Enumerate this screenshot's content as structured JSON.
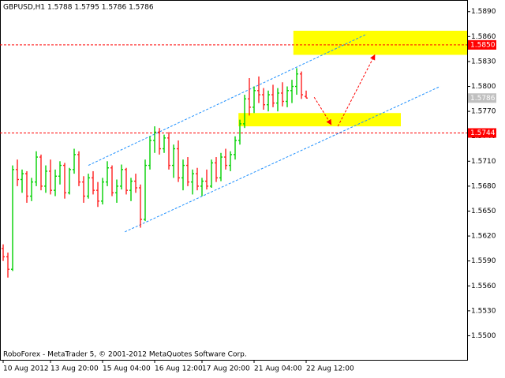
{
  "chart_data": {
    "type": "ohlc",
    "title": "GBPUSD,H1  1.5788 1.5795 1.5786 1.5786",
    "footer": "RoboForex - MetaTrader 5, © 2001-2012 MetaQuotes Software Corp.",
    "up_color": "#00d000",
    "down_color": "#ff2020",
    "open": [
      1.5605,
      1.5595,
      1.558,
      1.57,
      1.5688,
      1.5695,
      1.5668,
      1.5685,
      1.5715,
      1.568,
      1.5698,
      1.5675,
      1.5692,
      1.5705,
      1.5672,
      1.57,
      1.5718,
      1.5685,
      1.5668,
      1.569,
      1.5675,
      1.5662,
      1.5685,
      1.5702,
      1.5672,
      1.568,
      1.57,
      1.5675,
      1.5686,
      1.5678,
      1.564,
      1.5705,
      1.5735,
      1.5745,
      1.5725,
      1.5738,
      1.5705,
      1.5725,
      1.569,
      1.5705,
      1.5685,
      1.5695,
      1.568,
      1.5686,
      1.568,
      1.5708,
      1.569,
      1.5715,
      1.5705,
      1.5718,
      1.5735,
      1.5755,
      1.5785,
      1.5775,
      1.5795,
      1.579,
      1.5778,
      1.579,
      1.578,
      1.5792,
      1.5782,
      1.5795,
      1.58,
      1.5815,
      1.5788
    ],
    "high": [
      1.561,
      1.56,
      1.5705,
      1.5712,
      1.57,
      1.5698,
      1.569,
      1.5722,
      1.5718,
      1.5705,
      1.5712,
      1.57,
      1.571,
      1.5708,
      1.5702,
      1.5725,
      1.5722,
      1.5692,
      1.5695,
      1.5698,
      1.5685,
      1.569,
      1.571,
      1.5705,
      1.5688,
      1.5706,
      1.5702,
      1.569,
      1.5695,
      1.5682,
      1.5712,
      1.574,
      1.5752,
      1.575,
      1.5742,
      1.5745,
      1.573,
      1.5735,
      1.5712,
      1.5715,
      1.57,
      1.5702,
      1.569,
      1.57,
      1.5712,
      1.5715,
      1.572,
      1.5725,
      1.5722,
      1.574,
      1.576,
      1.579,
      1.581,
      1.58,
      1.5812,
      1.5798,
      1.5795,
      1.5802,
      1.5798,
      1.5805,
      1.58,
      1.5808,
      1.5822,
      1.5818,
      1.5795
    ],
    "low": [
      1.559,
      1.557,
      1.5578,
      1.568,
      1.5672,
      1.566,
      1.5662,
      1.568,
      1.5675,
      1.5672,
      1.567,
      1.5668,
      1.5682,
      1.5665,
      1.567,
      1.5695,
      1.568,
      1.566,
      1.5665,
      1.567,
      1.5655,
      1.5658,
      1.568,
      1.5668,
      1.566,
      1.5676,
      1.567,
      1.5662,
      1.5672,
      1.563,
      1.5638,
      1.57,
      1.572,
      1.5718,
      1.572,
      1.57,
      1.569,
      1.5685,
      1.5675,
      1.568,
      1.567,
      1.5675,
      1.5668,
      1.5676,
      1.5678,
      1.5685,
      1.5686,
      1.57,
      1.5698,
      1.5712,
      1.573,
      1.575,
      1.5765,
      1.5768,
      1.578,
      1.5772,
      1.577,
      1.5775,
      1.577,
      1.5776,
      1.5775,
      1.578,
      1.579,
      1.5785,
      1.5786
    ],
    "close": [
      1.5595,
      1.558,
      1.57,
      1.5688,
      1.5695,
      1.5668,
      1.5685,
      1.5715,
      1.568,
      1.5698,
      1.5675,
      1.5692,
      1.5705,
      1.5672,
      1.57,
      1.5718,
      1.5685,
      1.5668,
      1.569,
      1.5675,
      1.5662,
      1.5685,
      1.5702,
      1.5672,
      1.568,
      1.57,
      1.5675,
      1.5686,
      1.5678,
      1.564,
      1.5705,
      1.5735,
      1.5745,
      1.5725,
      1.5738,
      1.5705,
      1.5725,
      1.569,
      1.5705,
      1.5685,
      1.5695,
      1.568,
      1.5686,
      1.568,
      1.5708,
      1.569,
      1.5715,
      1.5705,
      1.5718,
      1.5735,
      1.5755,
      1.5785,
      1.5775,
      1.5795,
      1.579,
      1.5778,
      1.579,
      1.578,
      1.5792,
      1.5782,
      1.5795,
      1.58,
      1.5815,
      1.579,
      1.5786
    ],
    "xlim": [
      -0.667,
      98
    ],
    "xticks": [
      {
        "value": 0,
        "label": "10 Aug 2012"
      },
      {
        "value": 10,
        "label": "13 Aug 20:00"
      },
      {
        "value": 21,
        "label": "15 Aug 04:00"
      },
      {
        "value": 32,
        "label": "16 Aug 12:00"
      },
      {
        "value": 42,
        "label": "17 Aug 20:00"
      },
      {
        "value": 53,
        "label": "21 Aug 04:00"
      },
      {
        "value": 64,
        "label": "22 Aug 12:00"
      }
    ],
    "ylim": [
      1.5471,
      1.5904
    ],
    "yticks": [
      {
        "value": 1.589,
        "label": "1.5890"
      },
      {
        "value": 1.586,
        "label": "1.5860"
      },
      {
        "value": 1.583,
        "label": "1.5830"
      },
      {
        "value": 1.58,
        "label": "1.5800"
      },
      {
        "value": 1.577,
        "label": "1.5770"
      },
      {
        "value": 1.574,
        "label": "1.5740"
      },
      {
        "value": 1.571,
        "label": "1.5710"
      },
      {
        "value": 1.568,
        "label": "1.5680"
      },
      {
        "value": 1.565,
        "label": "1.5650"
      },
      {
        "value": 1.562,
        "label": "1.5620"
      },
      {
        "value": 1.559,
        "label": "1.5590"
      },
      {
        "value": 1.556,
        "label": "1.5560"
      },
      {
        "value": 1.553,
        "label": "1.5530"
      },
      {
        "value": 1.55,
        "label": "1.5500"
      }
    ],
    "levels": [
      {
        "value": 1.585,
        "label": "1.5850",
        "color": "#ff0000"
      },
      {
        "value": 1.5744,
        "label": "1.5744",
        "color": "#ff0000"
      }
    ],
    "last_price": {
      "value": 1.5786,
      "label": "1.5786",
      "color": "#c0c0c0"
    },
    "zones": [
      {
        "x": [
          61.3,
          98
        ],
        "y": [
          1.5838,
          1.5867
        ],
        "color": "#ffff00"
      },
      {
        "x": [
          49.7,
          84
        ],
        "y": [
          1.5752,
          1.5768
        ],
        "color": "#ffff00"
      }
    ],
    "trendlines": [
      {
        "x": [
          18,
          76.8
        ],
        "y": [
          1.5705,
          1.5863
        ],
        "color": "#1e90ff"
      },
      {
        "x": [
          25.7,
          92.3
        ],
        "y": [
          1.5625,
          1.58
        ],
        "color": "#1e90ff"
      }
    ],
    "arrows": [
      {
        "x": [
          65.7,
          69.3
        ],
        "y": [
          1.5787,
          1.5754
        ],
        "color": "#ff0000"
      },
      {
        "x": [
          70.7,
          78.5
        ],
        "y": [
          1.5752,
          1.5838
        ],
        "color": "#ff0000"
      }
    ]
  }
}
